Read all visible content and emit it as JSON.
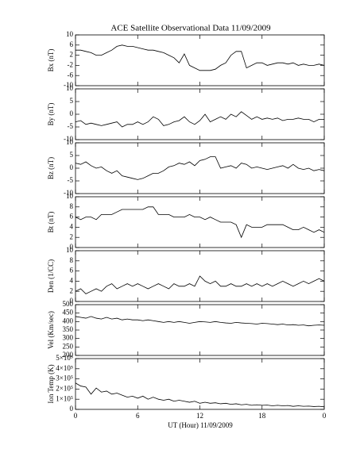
{
  "chart_data": [
    {
      "type": "line",
      "title": "ACE Satellite Observational Data   11/09/2009",
      "ylabel": "Bx (nT)",
      "color": "#000000",
      "ylim": [
        -10,
        10
      ],
      "yticks": [
        -10,
        -6,
        -2,
        2,
        6,
        10
      ],
      "x": [
        0,
        0.5,
        1,
        1.5,
        2,
        2.5,
        3,
        3.5,
        4,
        4.5,
        5,
        5.5,
        6,
        6.5,
        7,
        7.5,
        8,
        8.5,
        9,
        9.5,
        10,
        10.5,
        11,
        11.5,
        12,
        12.5,
        13,
        13.5,
        14,
        14.5,
        15,
        15.5,
        16,
        16.5,
        17,
        17.5,
        18,
        18.5,
        19,
        19.5,
        20,
        20.5,
        21,
        21.5,
        22,
        22.5,
        23,
        23.5,
        24
      ],
      "values": [
        4,
        4,
        3.5,
        3,
        2,
        2,
        3,
        4,
        5.5,
        6,
        5.5,
        5.5,
        5,
        4.5,
        4,
        4,
        3.5,
        3,
        2,
        1,
        -1,
        2.5,
        -2,
        -3,
        -4,
        -4,
        -4,
        -3.5,
        -2,
        -1,
        2,
        3.5,
        3.5,
        -3,
        -2,
        -1,
        -1,
        -2,
        -1.5,
        -1,
        -1,
        -1.5,
        -1,
        -2,
        -1.5,
        -2,
        -2,
        -1.5,
        -2
      ]
    },
    {
      "type": "line",
      "ylabel": "By (nT)",
      "color": "#000000",
      "ylim": [
        -10,
        10
      ],
      "yticks": [
        -10,
        -5,
        0,
        5,
        10
      ],
      "x": [
        0,
        0.5,
        1,
        1.5,
        2,
        2.5,
        3,
        3.5,
        4,
        4.5,
        5,
        5.5,
        6,
        6.5,
        7,
        7.5,
        8,
        8.5,
        9,
        9.5,
        10,
        10.5,
        11,
        11.5,
        12,
        12.5,
        13,
        13.5,
        14,
        14.5,
        15,
        15.5,
        16,
        16.5,
        17,
        17.5,
        18,
        18.5,
        19,
        19.5,
        20,
        20.5,
        21,
        21.5,
        22,
        22.5,
        23,
        23.5,
        24
      ],
      "values": [
        -3,
        -2.5,
        -4,
        -3.5,
        -4,
        -4.5,
        -4,
        -3.5,
        -3,
        -5,
        -4,
        -4,
        -3,
        -4,
        -3,
        -1,
        -2,
        -4.5,
        -4,
        -3,
        -2.5,
        -1,
        -3,
        -4,
        -2.5,
        0,
        -3,
        -2,
        -1,
        -2,
        0,
        -1,
        1,
        -0.5,
        -2,
        -1,
        -2,
        -1.5,
        -2,
        -1.5,
        -2.5,
        -2,
        -2,
        -1.5,
        -2,
        -2,
        -3,
        -2,
        -2
      ]
    },
    {
      "type": "line",
      "ylabel": "Bz (nT)",
      "color": "#000000",
      "ylim": [
        -10,
        10
      ],
      "yticks": [
        -10,
        -5,
        0,
        5,
        10
      ],
      "x": [
        0,
        0.5,
        1,
        1.5,
        2,
        2.5,
        3,
        3.5,
        4,
        4.5,
        5,
        5.5,
        6,
        6.5,
        7,
        7.5,
        8,
        8.5,
        9,
        9.5,
        10,
        10.5,
        11,
        11.5,
        12,
        12.5,
        13,
        13.5,
        14,
        14.5,
        15,
        15.5,
        16,
        16.5,
        17,
        17.5,
        18,
        18.5,
        19,
        19.5,
        20,
        20.5,
        21,
        21.5,
        22,
        22.5,
        23,
        23.5,
        24
      ],
      "values": [
        2,
        1.5,
        2.5,
        1,
        0,
        0.5,
        -1,
        -2,
        -1,
        -3,
        -3.5,
        -4,
        -4.5,
        -4,
        -3,
        -2,
        -2,
        -1,
        0.5,
        1,
        2,
        1.5,
        2.5,
        1,
        3,
        3.5,
        4.5,
        4.5,
        0,
        0.5,
        1,
        0,
        2,
        1.5,
        0,
        0.5,
        0,
        -0.5,
        0,
        0.5,
        1,
        0,
        1.5,
        0,
        -0.5,
        0,
        -1,
        -0.5,
        -1
      ]
    },
    {
      "type": "line",
      "ylabel": "Bt (nT)",
      "color": "#000000",
      "ylim": [
        0,
        10
      ],
      "yticks": [
        0,
        2,
        4,
        6,
        8,
        10
      ],
      "x": [
        0,
        0.5,
        1,
        1.5,
        2,
        2.5,
        3,
        3.5,
        4,
        4.5,
        5,
        5.5,
        6,
        6.5,
        7,
        7.5,
        8,
        8.5,
        9,
        9.5,
        10,
        10.5,
        11,
        11.5,
        12,
        12.5,
        13,
        13.5,
        14,
        14.5,
        15,
        15.5,
        16,
        16.5,
        17,
        17.5,
        18,
        18.5,
        19,
        19.5,
        20,
        20.5,
        21,
        21.5,
        22,
        22.5,
        23,
        23.5,
        24
      ],
      "values": [
        6,
        5.5,
        6,
        6,
        5.5,
        6.5,
        6.5,
        6.5,
        7,
        7.5,
        7.5,
        7.5,
        7.5,
        7.5,
        8,
        8,
        6.5,
        6.5,
        6.5,
        6,
        6,
        6,
        6.5,
        6,
        6,
        5.5,
        6,
        5.5,
        5,
        5,
        5,
        4.5,
        2,
        4.5,
        4,
        4,
        4,
        4.5,
        4.5,
        4.5,
        4.5,
        4,
        3.5,
        3.5,
        4,
        3.5,
        3,
        3.5,
        3
      ]
    },
    {
      "type": "line",
      "ylabel": "Den (1/CC)",
      "color": "#000000",
      "ylim": [
        0,
        10
      ],
      "yticks": [
        0,
        2,
        4,
        6,
        8,
        10
      ],
      "x": [
        0,
        0.5,
        1,
        1.5,
        2,
        2.5,
        3,
        3.5,
        4,
        4.5,
        5,
        5.5,
        6,
        6.5,
        7,
        7.5,
        8,
        8.5,
        9,
        9.5,
        10,
        10.5,
        11,
        11.5,
        12,
        12.5,
        13,
        13.5,
        14,
        14.5,
        15,
        15.5,
        16,
        16.5,
        17,
        17.5,
        18,
        18.5,
        19,
        19.5,
        20,
        20.5,
        21,
        21.5,
        22,
        22.5,
        23,
        23.5,
        24
      ],
      "values": [
        2,
        2.5,
        1.5,
        2,
        2.5,
        2,
        3,
        3.5,
        2.5,
        3,
        3.5,
        3,
        3.5,
        3,
        2.5,
        3,
        3.5,
        3,
        2.5,
        3.5,
        3,
        3,
        3.5,
        3,
        5,
        4,
        3.5,
        4,
        3,
        3,
        3.5,
        3,
        3,
        3.5,
        3,
        3.5,
        3,
        3.5,
        3,
        3.5,
        4,
        3.5,
        3,
        3.5,
        4,
        3.5,
        4,
        4.5,
        4
      ]
    },
    {
      "type": "line",
      "ylabel": "Vel (Km/sec)",
      "color": "#000000",
      "ylim": [
        200,
        500
      ],
      "yticks": [
        200,
        250,
        300,
        350,
        400,
        450,
        500
      ],
      "x": [
        0,
        0.5,
        1,
        1.5,
        2,
        2.5,
        3,
        3.5,
        4,
        4.5,
        5,
        5.5,
        6,
        6.5,
        7,
        7.5,
        8,
        8.5,
        9,
        9.5,
        10,
        10.5,
        11,
        11.5,
        12,
        12.5,
        13,
        13.5,
        14,
        14.5,
        15,
        15.5,
        16,
        16.5,
        17,
        17.5,
        18,
        18.5,
        19,
        19.5,
        20,
        20.5,
        21,
        21.5,
        22,
        22.5,
        23,
        23.5,
        24
      ],
      "values": [
        430,
        425,
        420,
        430,
        420,
        415,
        425,
        415,
        420,
        410,
        415,
        410,
        410,
        405,
        410,
        405,
        400,
        395,
        400,
        395,
        400,
        395,
        390,
        395,
        400,
        398,
        395,
        400,
        395,
        392,
        390,
        395,
        392,
        390,
        388,
        385,
        390,
        388,
        385,
        382,
        385,
        380,
        382,
        378,
        380,
        375,
        378,
        380,
        378
      ]
    },
    {
      "type": "line",
      "ylabel": "Ion Temp (K)",
      "xlabel": "UT (Hour)   11/09/2009",
      "color": "#000000",
      "ylim": [
        0,
        500000
      ],
      "yticks": [
        0,
        {
          "value": 100000,
          "label": "1×10⁵"
        },
        {
          "value": 200000,
          "label": "2×10⁵"
        },
        {
          "value": 300000,
          "label": "3×10⁵"
        },
        {
          "value": 400000,
          "label": "4×10⁵"
        },
        {
          "value": 500000,
          "label": "5×10⁵"
        }
      ],
      "xlim": [
        0,
        24
      ],
      "xticks": [
        0,
        6,
        12,
        18,
        {
          "value": 24,
          "label": "0"
        }
      ],
      "x": [
        0,
        0.5,
        1,
        1.5,
        2,
        2.5,
        3,
        3.5,
        4,
        4.5,
        5,
        5.5,
        6,
        6.5,
        7,
        7.5,
        8,
        8.5,
        9,
        9.5,
        10,
        10.5,
        11,
        11.5,
        12,
        12.5,
        13,
        13.5,
        14,
        14.5,
        15,
        15.5,
        16,
        16.5,
        17,
        17.5,
        18,
        18.5,
        19,
        19.5,
        20,
        20.5,
        21,
        21.5,
        22,
        22.5,
        23,
        23.5,
        24
      ],
      "values": [
        260000,
        230000,
        220000,
        150000,
        210000,
        170000,
        180000,
        150000,
        160000,
        140000,
        120000,
        130000,
        110000,
        130000,
        100000,
        120000,
        100000,
        90000,
        100000,
        80000,
        90000,
        80000,
        70000,
        80000,
        60000,
        70000,
        60000,
        65000,
        55000,
        60000,
        50000,
        55000,
        45000,
        50000,
        40000,
        45000,
        40000,
        42000,
        35000,
        40000,
        35000,
        38000,
        30000,
        35000,
        30000,
        32000,
        28000,
        30000,
        25000
      ]
    }
  ]
}
